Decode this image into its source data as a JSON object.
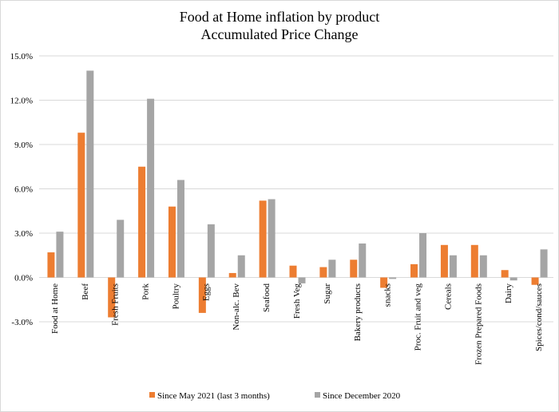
{
  "chart_data": {
    "type": "bar",
    "title": "Food at Home inflation by product",
    "subtitle": "Accumulated Price Change",
    "xlabel": "",
    "ylabel": "",
    "ylim": [
      -3.0,
      15.0
    ],
    "yticks": [
      "-3.0%",
      "0.0%",
      "3.0%",
      "6.0%",
      "9.0%",
      "12.0%",
      "15.0%"
    ],
    "grid": true,
    "legend_position": "bottom",
    "categories": [
      "Food at Home",
      "Beef",
      "Fresh Fruits",
      "Pork",
      "Poultry",
      "Eggs",
      "Non-alc. Bev",
      "Seafood",
      "Fresh Veg",
      "Sugar",
      "Bakery products",
      "snacks",
      "Proc. Fruit and veg",
      "Cereals",
      "Frozen Prepared Foods",
      "Dairy",
      "Spices/cond/sauces"
    ],
    "series": [
      {
        "name": "Since May 2021 (last 3 months)",
        "color": "#ED7D31",
        "values": [
          1.7,
          9.8,
          -2.7,
          7.5,
          4.8,
          -2.4,
          0.3,
          5.2,
          0.8,
          0.7,
          1.2,
          -0.7,
          0.9,
          2.2,
          2.2,
          0.5,
          -0.5
        ]
      },
      {
        "name": "Since December 2020",
        "color": "#A5A5A5",
        "values": [
          3.1,
          14.0,
          3.9,
          12.1,
          6.6,
          3.6,
          1.5,
          5.3,
          -0.4,
          1.2,
          2.3,
          -0.1,
          3.0,
          1.5,
          1.5,
          -0.2,
          1.9
        ]
      }
    ]
  }
}
